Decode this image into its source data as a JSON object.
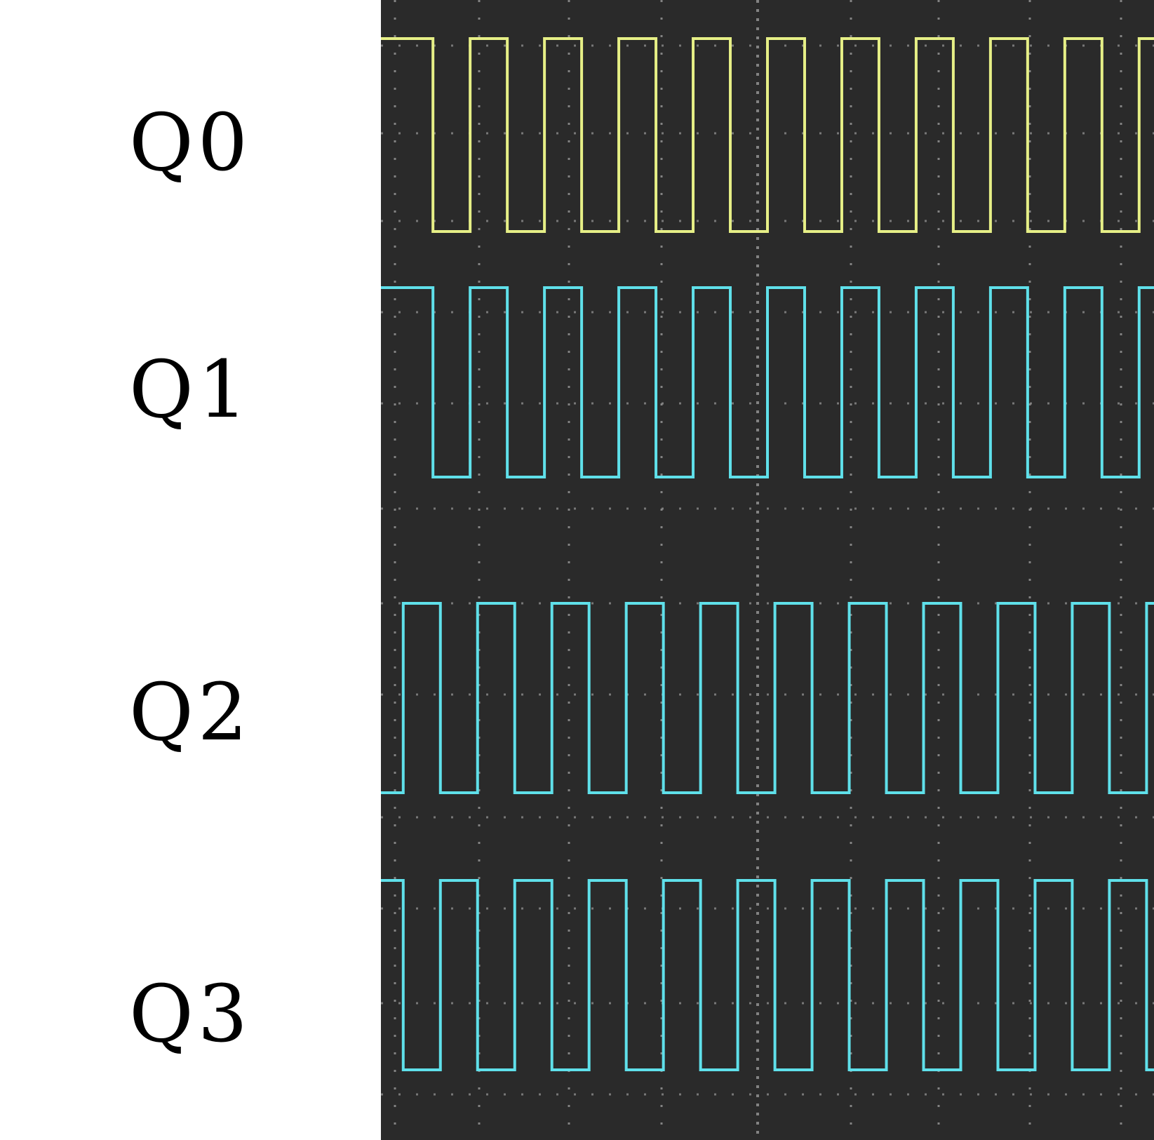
{
  "labels": {
    "q0": "Q0",
    "q1": "Q1",
    "q2": "Q2",
    "q3": "Q3"
  },
  "colors": {
    "background": "#ffffff",
    "label_text": "#000000",
    "screen": "#2a2a2a",
    "grid": "#9a9a9a",
    "q0_trace": "#e6ef86",
    "q1_trace": "#5fe0ea",
    "q2_trace": "#5fe0ea",
    "q3_trace": "#5fe0ea"
  },
  "traces": [
    {
      "channel": "Q0",
      "start": "high",
      "initial_high_len": 0.7,
      "periods": 10.4
    },
    {
      "channel": "Q1",
      "start": "high",
      "initial_high_len": 0.7,
      "periods": 10.4
    },
    {
      "channel": "Q2",
      "start": "low",
      "initial_high_len": 0.0,
      "periods": 10.4
    },
    {
      "channel": "Q3",
      "start": "high",
      "initial_high_len": 0.3,
      "periods": 10.4
    }
  ]
}
